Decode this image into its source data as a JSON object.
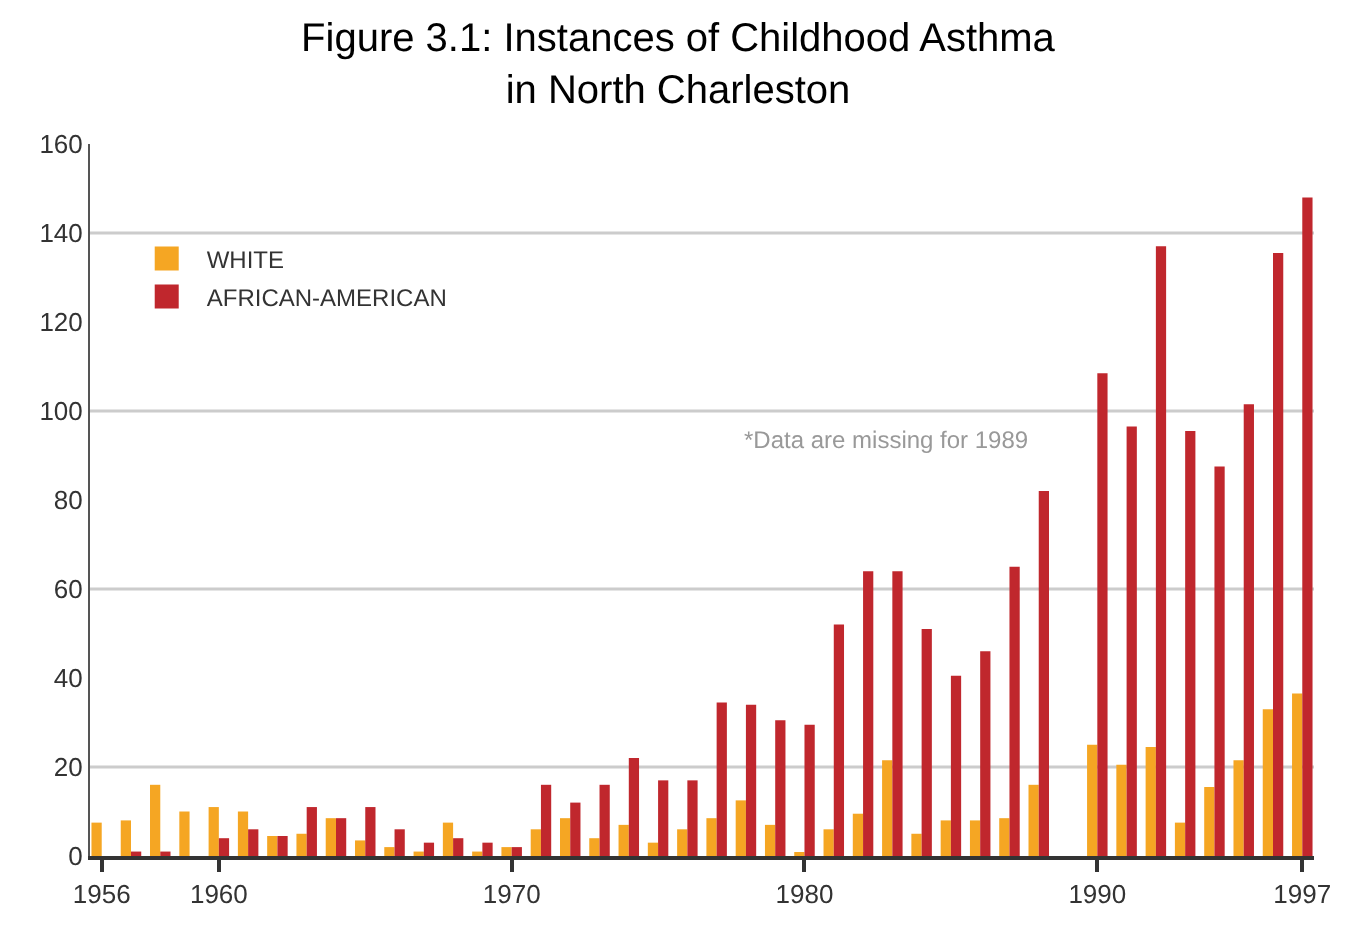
{
  "chart_data": {
    "type": "bar",
    "title": "Figure 3.1: Instances of Childhood Asthma\nin North Charleston",
    "x": [
      1956,
      1957,
      1958,
      1959,
      1960,
      1961,
      1962,
      1963,
      1964,
      1965,
      1966,
      1967,
      1968,
      1969,
      1970,
      1971,
      1972,
      1973,
      1974,
      1975,
      1976,
      1977,
      1978,
      1979,
      1980,
      1981,
      1982,
      1983,
      1984,
      1985,
      1986,
      1987,
      1988,
      1989,
      1990,
      1991,
      1992,
      1993,
      1994,
      1995,
      1996,
      1997
    ],
    "series": [
      {
        "name": "WHITE",
        "color": "#f5a623",
        "values": [
          7.5,
          8,
          16,
          10,
          11,
          10,
          4.5,
          5,
          8.5,
          3.5,
          2,
          1,
          7.5,
          1,
          2,
          6,
          8.5,
          4,
          7,
          3,
          6,
          8.5,
          12.5,
          7,
          0.5,
          6,
          9.5,
          21.5,
          5,
          8,
          8,
          8.5,
          16,
          null,
          25,
          20.5,
          24.5,
          7.5,
          15.5,
          21.5,
          33,
          36.5
        ]
      },
      {
        "name": "AFRICAN-AMERICAN",
        "color": "#c0272d",
        "values": [
          0,
          1,
          1,
          0,
          4,
          6,
          4.5,
          11,
          8.5,
          11,
          6,
          3,
          4,
          3,
          2,
          16,
          12,
          16,
          22,
          17,
          17,
          34.5,
          34,
          30.5,
          29.5,
          52,
          64,
          64,
          51,
          40.5,
          46,
          65,
          82,
          null,
          108.5,
          96.5,
          137,
          95.5,
          87.5,
          101.5,
          135.5,
          148
        ]
      }
    ],
    "xlim": [
      1955.6,
      1997.4
    ],
    "xticks": [
      1956,
      1960,
      1970,
      1980,
      1990,
      1997
    ],
    "ylim": [
      0,
      160
    ],
    "yticks": [
      0,
      20,
      40,
      60,
      80,
      100,
      120,
      140,
      160
    ],
    "grid": false,
    "ref_lines": [
      {
        "axis": "y",
        "value": 20,
        "color": "#cccccc"
      },
      {
        "axis": "y",
        "value": 60,
        "color": "#cccccc"
      },
      {
        "axis": "y",
        "value": 100,
        "color": "#cccccc"
      },
      {
        "axis": "y",
        "value": 140,
        "color": "#cccccc"
      }
    ],
    "annotations": [
      "*Data are missing for 1989"
    ],
    "legend": "top left"
  }
}
